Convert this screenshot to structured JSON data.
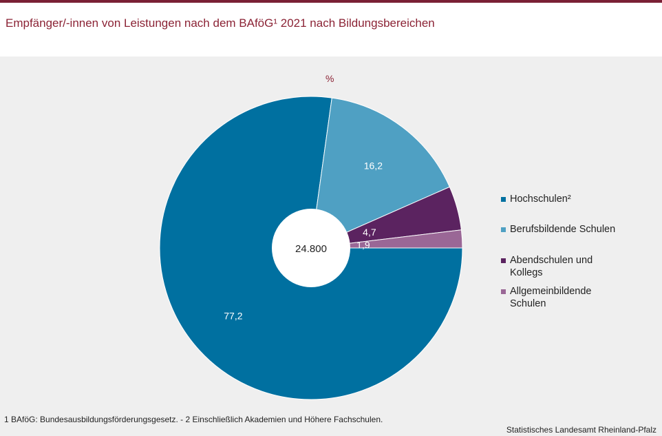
{
  "title": "Empfänger/-innen von Leistungen nach dem BAföG¹ 2021 nach Bildungsbereichen",
  "chart_data": {
    "type": "pie",
    "unit_label": "%",
    "center_label": "24.800",
    "categories": [
      "Hochschulen²",
      "Berufsbildende Schulen",
      "Abendschulen und Kollegs",
      "Allgemeinbildende Schulen"
    ],
    "values": [
      77.2,
      16.2,
      4.7,
      1.9
    ],
    "value_labels": [
      "77,2",
      "16,2",
      "4,7",
      "1,9"
    ],
    "colors": [
      "#0070a0",
      "#4fa0c3",
      "#5b2360",
      "#9a6796"
    ],
    "legend_position": "right"
  },
  "footnote": "1 BAföG: Bundesausbildungsförderungsgesetz.  - 2 Einschließlich Akademien und Höhere Fachschulen.",
  "source": "Statistisches Landesamt Rheinland-Pfalz"
}
